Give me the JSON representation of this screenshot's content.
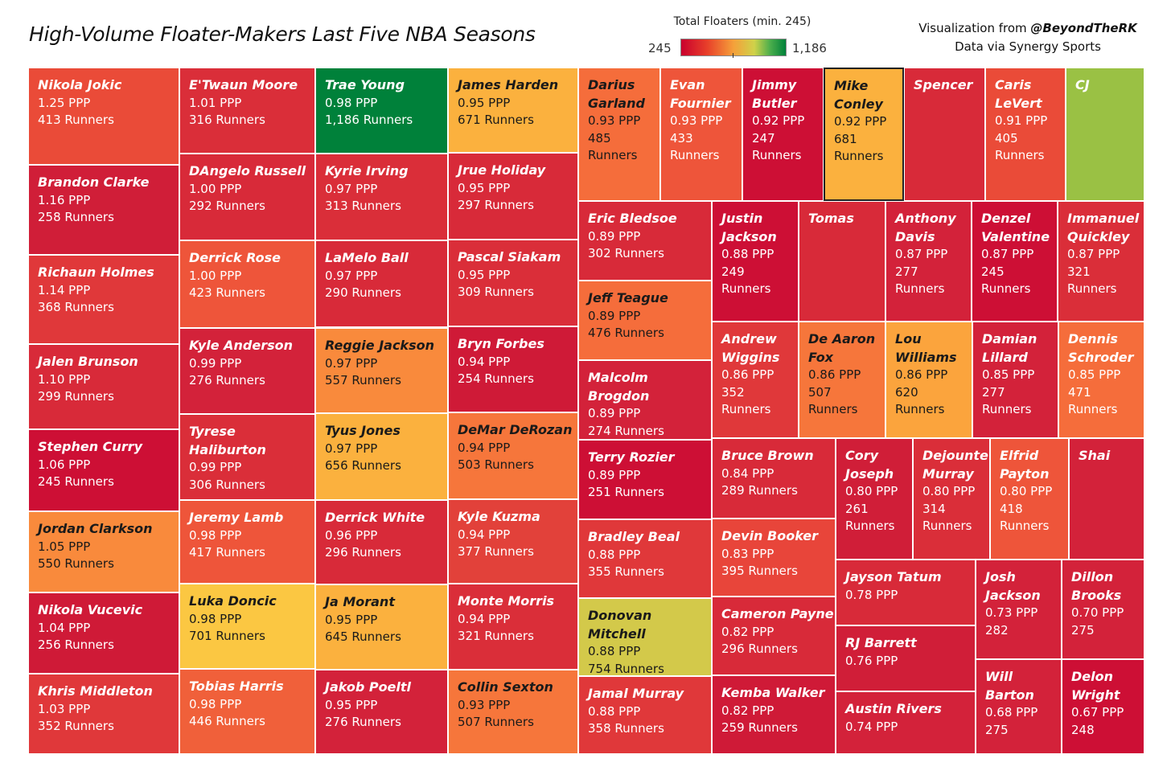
{
  "header": {
    "title": "High-Volume Floater-Makers Last Five NBA Seasons",
    "legend_title": "Total Floaters (min. 245)",
    "legend_min": "245",
    "legend_max": "1,186",
    "credit_prefix": "Visualization from ",
    "credit_handle": "@BeyondTheRK",
    "credit_line2": "Data via Synergy Sports"
  },
  "colors": {
    "red": "#cf1236",
    "red_light": "#e0313b",
    "red_orange": "#ea4b38",
    "orange_red": "#f0603a",
    "orange": "#f98a3c",
    "amber": "#fbb13e",
    "yellow": "#fbc742",
    "olive": "#d3c94a",
    "lime": "#9ac144",
    "green": "#00813a"
  },
  "chart_data": {
    "type": "treemap",
    "title": "High-Volume Floater-Makers Last Five NBA Seasons",
    "size_metric": "Total Floaters (Runners)",
    "color_metric": "Total Floaters (min. 245)",
    "color_range": [
      245,
      1186
    ],
    "items": [
      {
        "name": "Nikola Jokic",
        "ppp": "1.25 PPP",
        "runners": "413 Runners",
        "color": "#ea4b38"
      },
      {
        "name": "Brandon Clarke",
        "ppp": "1.16 PPP",
        "runners": "258 Runners",
        "color": "#d01e38"
      },
      {
        "name": "Richaun Holmes",
        "ppp": "1.14 PPP",
        "runners": "368 Runners",
        "color": "#e0383a"
      },
      {
        "name": "Jalen Brunson",
        "ppp": "1.10 PPP",
        "runners": "299 Runners",
        "color": "#d82a39"
      },
      {
        "name": "Stephen Curry",
        "ppp": "1.06 PPP",
        "runners": "245 Runners",
        "color": "#cd0f35"
      },
      {
        "name": "Jordan Clarkson",
        "ppp": "1.05 PPP",
        "runners": "550 Runners",
        "color": "#f98a3c"
      },
      {
        "name": "Nikola Vucevic",
        "ppp": "1.04 PPP",
        "runners": "256 Runners",
        "color": "#cf1a37"
      },
      {
        "name": "Khris Middleton",
        "ppp": "1.03 PPP",
        "runners": "352 Runners",
        "color": "#e0383a"
      },
      {
        "name": "E'Twaun Moore",
        "ppp": "1.01 PPP",
        "runners": "316 Runners",
        "color": "#da2e39"
      },
      {
        "name": "DAngelo Russell",
        "ppp": "1.00 PPP",
        "runners": "292 Runners",
        "color": "#d82a39"
      },
      {
        "name": "Derrick Rose",
        "ppp": "1.00 PPP",
        "runners": "423 Runners",
        "color": "#ee553a"
      },
      {
        "name": "Kyle Anderson",
        "ppp": "0.99 PPP",
        "runners": "276 Runners",
        "color": "#d3223a"
      },
      {
        "name": "Tyrese Haliburton",
        "ppp": "0.99 PPP",
        "runners": "306 Runners",
        "color": "#da2e39"
      },
      {
        "name": "Jeremy Lamb",
        "ppp": "0.98 PPP",
        "runners": "417 Runners",
        "color": "#ee553a"
      },
      {
        "name": "Luka Doncic",
        "ppp": "0.98 PPP",
        "runners": "701 Runners",
        "color": "#fbc742"
      },
      {
        "name": "Tobias Harris",
        "ppp": "0.98 PPP",
        "runners": "446 Runners",
        "color": "#f0603a"
      },
      {
        "name": "Trae Young",
        "ppp": "0.98 PPP",
        "runners": "1,186 Runners",
        "color": "#00813a"
      },
      {
        "name": "Kyrie Irving",
        "ppp": "0.97 PPP",
        "runners": "313 Runners",
        "color": "#da2e39"
      },
      {
        "name": "LaMelo Ball",
        "ppp": "0.97 PPP",
        "runners": "290 Runners",
        "color": "#d82a39"
      },
      {
        "name": "Reggie Jackson",
        "ppp": "0.97 PPP",
        "runners": "557 Runners",
        "color": "#f98a3c"
      },
      {
        "name": "Tyus Jones",
        "ppp": "0.97 PPP",
        "runners": "656 Runners",
        "color": "#fbb13e"
      },
      {
        "name": "Derrick White",
        "ppp": "0.96 PPP",
        "runners": "296 Runners",
        "color": "#d82a39"
      },
      {
        "name": "Ja Morant",
        "ppp": "0.95 PPP",
        "runners": "645 Runners",
        "color": "#fbb13e"
      },
      {
        "name": "Jakob Poeltl",
        "ppp": "0.95 PPP",
        "runners": "276 Runners",
        "color": "#d3223a"
      },
      {
        "name": "James Harden",
        "ppp": "0.95 PPP",
        "runners": "671 Runners",
        "color": "#fbb13e"
      },
      {
        "name": "Jrue Holiday",
        "ppp": "0.95 PPP",
        "runners": "297 Runners",
        "color": "#d82a39"
      },
      {
        "name": "Pascal Siakam",
        "ppp": "0.95 PPP",
        "runners": "309 Runners",
        "color": "#da2e39"
      },
      {
        "name": "Bryn Forbes",
        "ppp": "0.94 PPP",
        "runners": "254 Runners",
        "color": "#cf1a37"
      },
      {
        "name": "DeMar DeRozan",
        "ppp": "0.94 PPP",
        "runners": "503 Runners",
        "color": "#f6763b"
      },
      {
        "name": "Kyle Kuzma",
        "ppp": "0.94 PPP",
        "runners": "377 Runners",
        "color": "#e2413a"
      },
      {
        "name": "Monte Morris",
        "ppp": "0.94 PPP",
        "runners": "321 Runners",
        "color": "#da2e39"
      },
      {
        "name": "Collin Sexton",
        "ppp": "0.93 PPP",
        "runners": "507 Runners",
        "color": "#f6763b"
      },
      {
        "name": "Darius Garland",
        "ppp": "0.93 PPP",
        "runners": "485 Runners",
        "color": "#f56d3b"
      },
      {
        "name": "Evan Fournier",
        "ppp": "0.93 PPP",
        "runners": "433 Runners",
        "color": "#ee553a"
      },
      {
        "name": "Jimmy Butler",
        "ppp": "0.92 PPP",
        "runners": "247 Runners",
        "color": "#cd0f35"
      },
      {
        "name": "Mike Conley",
        "ppp": "0.92 PPP",
        "runners": "681 Runners",
        "color": "#fbb13e"
      },
      {
        "name": "Spencer",
        "ppp": "",
        "runners": "",
        "color": "#d82a39"
      },
      {
        "name": "Caris LeVert",
        "ppp": "0.91 PPP",
        "runners": "405 Runners",
        "color": "#ea4b38"
      },
      {
        "name": "CJ",
        "ppp": "",
        "runners": "",
        "color": "#9ac144"
      },
      {
        "name": "Eric Bledsoe",
        "ppp": "0.89 PPP",
        "runners": "302 Runners",
        "color": "#d82a39"
      },
      {
        "name": "Jeff Teague",
        "ppp": "0.89 PPP",
        "runners": "476 Runners",
        "color": "#f56d3b"
      },
      {
        "name": "Malcolm Brogdon",
        "ppp": "0.89 PPP",
        "runners": "274 Runners",
        "color": "#d3223a"
      },
      {
        "name": "Terry Rozier",
        "ppp": "0.89 PPP",
        "runners": "251 Runners",
        "color": "#cd0f35"
      },
      {
        "name": "Bradley Beal",
        "ppp": "0.88 PPP",
        "runners": "355 Runners",
        "color": "#e0383a"
      },
      {
        "name": "Donovan Mitchell",
        "ppp": "0.88 PPP",
        "runners": "754 Runners",
        "color": "#d3c94a"
      },
      {
        "name": "Jamal Murray",
        "ppp": "0.88 PPP",
        "runners": "358 Runners",
        "color": "#e0383a"
      },
      {
        "name": "Justin Jackson",
        "ppp": "0.88 PPP",
        "runners": "249 Runners",
        "color": "#cd0f35"
      },
      {
        "name": "Tomas",
        "ppp": "",
        "runners": "",
        "color": "#d82a39"
      },
      {
        "name": "Anthony Davis",
        "ppp": "0.87 PPP",
        "runners": "277 Runners",
        "color": "#d3223a"
      },
      {
        "name": "Denzel Valentine",
        "ppp": "0.87 PPP",
        "runners": "245 Runners",
        "color": "#cd0f35"
      },
      {
        "name": "Immanuel Quickley",
        "ppp": "0.87 PPP",
        "runners": "321 Runners",
        "color": "#da2e39"
      },
      {
        "name": "Andrew Wiggins",
        "ppp": "0.86 PPP",
        "runners": "352 Runners",
        "color": "#e0383a"
      },
      {
        "name": "De Aaron Fox",
        "ppp": "0.86 PPP",
        "runners": "507 Runners",
        "color": "#f6763b"
      },
      {
        "name": "Lou Williams",
        "ppp": "0.86 PPP",
        "runners": "620 Runners",
        "color": "#fba43d"
      },
      {
        "name": "Damian Lillard",
        "ppp": "0.85 PPP",
        "runners": "277 Runners",
        "color": "#d3223a"
      },
      {
        "name": "Dennis Schroder",
        "ppp": "0.85 PPP",
        "runners": "471 Runners",
        "color": "#f56d3b"
      },
      {
        "name": "Bruce Brown",
        "ppp": "0.84 PPP",
        "runners": "289 Runners",
        "color": "#d82a39"
      },
      {
        "name": "Devin Booker",
        "ppp": "0.83 PPP",
        "runners": "395 Runners",
        "color": "#e8453a"
      },
      {
        "name": "Cameron Payne",
        "ppp": "0.82 PPP",
        "runners": "296 Runners",
        "color": "#d82a39"
      },
      {
        "name": "Kemba Walker",
        "ppp": "0.82 PPP",
        "runners": "259 Runners",
        "color": "#cf1a37"
      },
      {
        "name": "Cory Joseph",
        "ppp": "0.80 PPP",
        "runners": "261 Runners",
        "color": "#d01e38"
      },
      {
        "name": "Dejounte Murray",
        "ppp": "0.80 PPP",
        "runners": "314 Runners",
        "color": "#da2e39"
      },
      {
        "name": "Elfrid Payton",
        "ppp": "0.80 PPP",
        "runners": "418 Runners",
        "color": "#ee553a"
      },
      {
        "name": "Shai",
        "ppp": "",
        "runners": "",
        "color": "#d3223a"
      },
      {
        "name": "Jayson Tatum",
        "ppp": "0.78 PPP",
        "runners": "",
        "color": "#d82a39"
      },
      {
        "name": "RJ Barrett",
        "ppp": "0.76 PPP",
        "runners": "",
        "color": "#d01e38"
      },
      {
        "name": "Austin Rivers",
        "ppp": "0.74 PPP",
        "runners": "",
        "color": "#d3223a"
      },
      {
        "name": "Josh Jackson",
        "ppp": "0.73 PPP",
        "runners": "282",
        "color": "#d3223a"
      },
      {
        "name": "Dillon Brooks",
        "ppp": "0.70 PPP",
        "runners": "275",
        "color": "#d3223a"
      },
      {
        "name": "Will Barton",
        "ppp": "0.68 PPP",
        "runners": "275",
        "color": "#d3223a"
      },
      {
        "name": "Delon Wright",
        "ppp": "0.67 PPP",
        "runners": "248",
        "color": "#cd0f35"
      }
    ]
  }
}
